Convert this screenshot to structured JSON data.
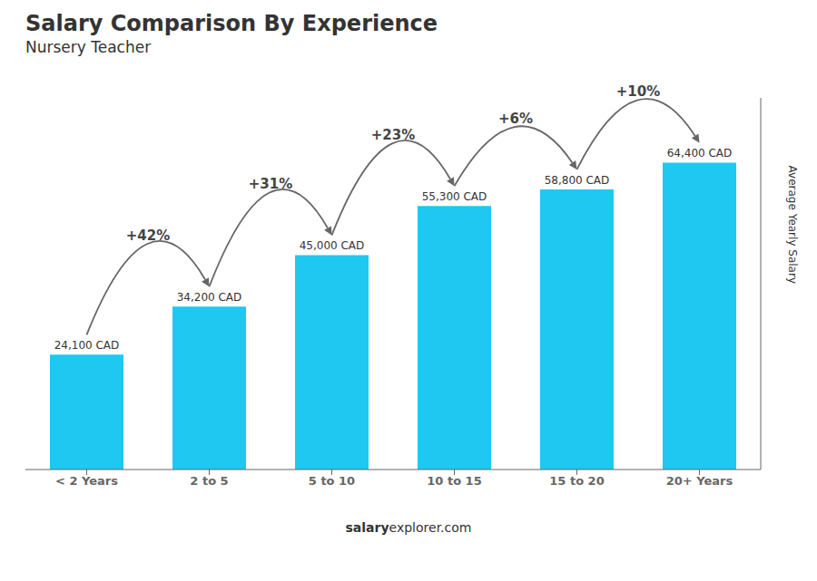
{
  "chart_data": {
    "type": "bar",
    "title": "Salary Comparison By Experience",
    "subtitle": "Nursery Teacher",
    "categories": [
      "< 2 Years",
      "2 to 5",
      "5 to 10",
      "10 to 15",
      "15 to 20",
      "20+ Years"
    ],
    "values": [
      24100,
      34200,
      45000,
      55300,
      58800,
      64400
    ],
    "value_labels": [
      "24,100 CAD",
      "34,200 CAD",
      "45,000 CAD",
      "55,300 CAD",
      "58,800 CAD",
      "64,400 CAD"
    ],
    "data_labels": true,
    "annotations": [
      "+42%",
      "+31%",
      "+23%",
      "+6%",
      "+10%"
    ],
    "ylabel": "Average Yearly Salary",
    "footer": [
      "salary",
      "explorer.com"
    ],
    "color": "#1EC8F0",
    "ylim": [
      0,
      78000
    ],
    "tick_labels": "x",
    "grid": false
  }
}
